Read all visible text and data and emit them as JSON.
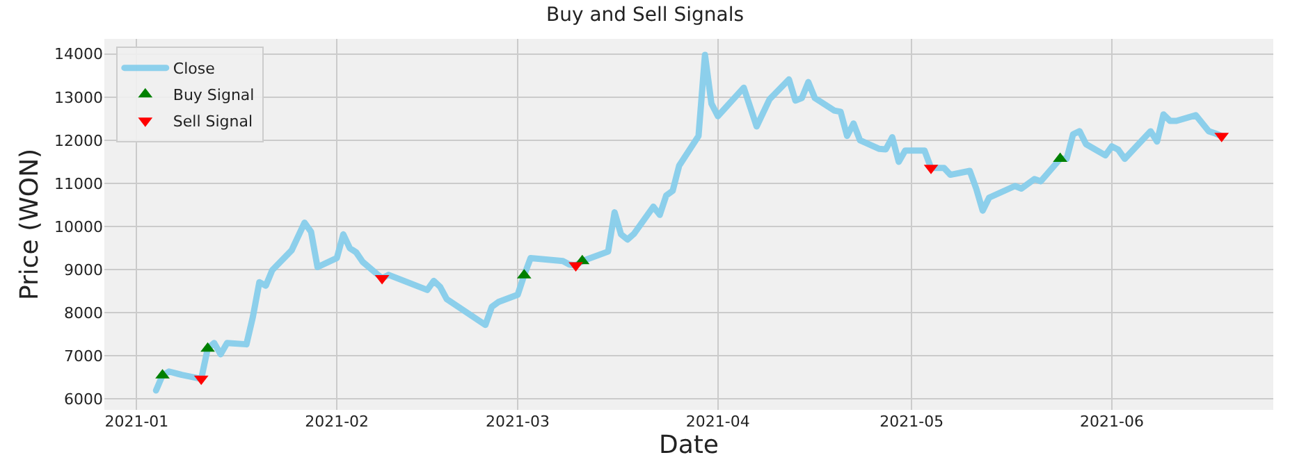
{
  "chart_data": {
    "type": "line",
    "title": "Buy and Sell Signals",
    "xlabel": "Date",
    "ylabel": "Price (WON)",
    "xlim": [
      "2020-12-27",
      "2021-06-26"
    ],
    "xticks": [
      {
        "value": "2021-01-01",
        "label": "2021-01"
      },
      {
        "value": "2021-02-01",
        "label": "2021-02"
      },
      {
        "value": "2021-03-01",
        "label": "2021-03"
      },
      {
        "value": "2021-04-01",
        "label": "2021-04"
      },
      {
        "value": "2021-05-01",
        "label": "2021-05"
      },
      {
        "value": "2021-06-01",
        "label": "2021-06"
      }
    ],
    "ylim": [
      5750,
      14350
    ],
    "yticks": [
      6000,
      7000,
      8000,
      9000,
      10000,
      11000,
      12000,
      13000,
      14000
    ],
    "grid": true,
    "legend": "top left",
    "series": [
      {
        "name": "Close",
        "color": "#87ceeb",
        "marker": "none",
        "line_style": "solid",
        "x": [
          "2021-01-04",
          "2021-01-05",
          "2021-01-06",
          "2021-01-08",
          "2021-01-11",
          "2021-01-12",
          "2021-01-13",
          "2021-01-14",
          "2021-01-15",
          "2021-01-18",
          "2021-01-19",
          "2021-01-20",
          "2021-01-21",
          "2021-01-22",
          "2021-01-25",
          "2021-01-27",
          "2021-01-28",
          "2021-01-29",
          "2021-02-01",
          "2021-02-02",
          "2021-02-03",
          "2021-02-04",
          "2021-02-05",
          "2021-02-08",
          "2021-02-09",
          "2021-02-15",
          "2021-02-16",
          "2021-02-17",
          "2021-02-18",
          "2021-02-24",
          "2021-02-25",
          "2021-02-26",
          "2021-03-01",
          "2021-03-02",
          "2021-03-03",
          "2021-03-08",
          "2021-03-09",
          "2021-03-10",
          "2021-03-11",
          "2021-03-15",
          "2021-03-16",
          "2021-03-17",
          "2021-03-18",
          "2021-03-19",
          "2021-03-22",
          "2021-03-23",
          "2021-03-24",
          "2021-03-25",
          "2021-03-26",
          "2021-03-29",
          "2021-03-30",
          "2021-03-31",
          "2021-04-01",
          "2021-04-05",
          "2021-04-07",
          "2021-04-09",
          "2021-04-12",
          "2021-04-13",
          "2021-04-14",
          "2021-04-15",
          "2021-04-16",
          "2021-04-19",
          "2021-04-20",
          "2021-04-21",
          "2021-04-22",
          "2021-04-23",
          "2021-04-26",
          "2021-04-27",
          "2021-04-28",
          "2021-04-29",
          "2021-04-30",
          "2021-05-03",
          "2021-05-04",
          "2021-05-06",
          "2021-05-07",
          "2021-05-10",
          "2021-05-11",
          "2021-05-12",
          "2021-05-13",
          "2021-05-17",
          "2021-05-18",
          "2021-05-20",
          "2021-05-21",
          "2021-05-24",
          "2021-05-25",
          "2021-05-26",
          "2021-05-27",
          "2021-05-28",
          "2021-05-31",
          "2021-06-01",
          "2021-06-02",
          "2021-06-03",
          "2021-06-07",
          "2021-06-08",
          "2021-06-09",
          "2021-06-10",
          "2021-06-11",
          "2021-06-14",
          "2021-06-16",
          "2021-06-17",
          "2021-06-18"
        ],
        "values": [
          6200,
          6550,
          6640,
          6560,
          6470,
          7170,
          7300,
          7040,
          7300,
          7270,
          7910,
          8710,
          8630,
          8990,
          9450,
          10090,
          9880,
          9060,
          9270,
          9820,
          9500,
          9400,
          9180,
          8800,
          8880,
          8530,
          8740,
          8600,
          8320,
          7720,
          8140,
          8250,
          8420,
          8870,
          9270,
          9200,
          9120,
          9100,
          9200,
          9420,
          10330,
          9820,
          9700,
          9830,
          10460,
          10270,
          10720,
          10830,
          11410,
          12100,
          13980,
          12850,
          12560,
          13220,
          12320,
          12950,
          13410,
          12920,
          12980,
          13350,
          12980,
          12690,
          12660,
          12100,
          12390,
          12000,
          11800,
          11790,
          12070,
          11500,
          11760,
          11760,
          11360,
          11360,
          11200,
          11290,
          10880,
          10370,
          10670,
          10940,
          10880,
          11100,
          11050,
          11570,
          11570,
          12140,
          12210,
          11910,
          11650,
          11860,
          11780,
          11570,
          12210,
          11970,
          12600,
          12450,
          12450,
          12580,
          12210,
          12160,
          12100
        ]
      },
      {
        "name": "Buy Signal",
        "type": "scatter",
        "color": "#008000",
        "marker": "triangle",
        "x": [
          "2021-01-05",
          "2021-01-12",
          "2021-03-02",
          "2021-03-11",
          "2021-05-24"
        ],
        "values": [
          6550,
          7170,
          8870,
          9200,
          11570
        ]
      },
      {
        "name": "Sell Signal",
        "type": "scatter",
        "color": "#ff0000",
        "marker": "triangle-down",
        "x": [
          "2021-01-11",
          "2021-02-08",
          "2021-03-10",
          "2021-05-04",
          "2021-06-18"
        ],
        "values": [
          6470,
          8800,
          9100,
          11360,
          12100
        ]
      }
    ]
  }
}
